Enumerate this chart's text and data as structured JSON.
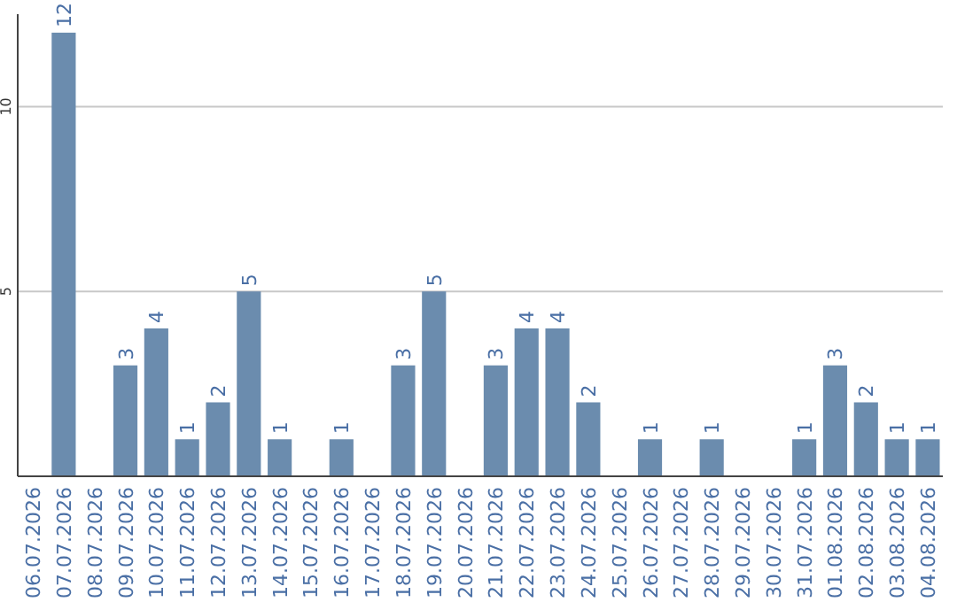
{
  "chart_data": {
    "type": "bar",
    "categories": [
      "06.07.2026",
      "07.07.2026",
      "08.07.2026",
      "09.07.2026",
      "10.07.2026",
      "11.07.2026",
      "12.07.2026",
      "13.07.2026",
      "14.07.2026",
      "15.07.2026",
      "16.07.2026",
      "17.07.2026",
      "18.07.2026",
      "19.07.2026",
      "20.07.2026",
      "21.07.2026",
      "22.07.2026",
      "23.07.2026",
      "24.07.2026",
      "25.07.2026",
      "26.07.2026",
      "27.07.2026",
      "28.07.2026",
      "29.07.2026",
      "30.07.2026",
      "31.07.2026",
      "01.08.2026",
      "02.08.2026",
      "03.08.2026",
      "04.08.2026"
    ],
    "values": [
      0,
      12,
      0,
      3,
      4,
      1,
      2,
      5,
      1,
      0,
      1,
      0,
      3,
      5,
      0,
      3,
      4,
      4,
      2,
      0,
      1,
      0,
      1,
      0,
      0,
      1,
      3,
      2,
      1,
      1
    ],
    "value_labels": [
      null,
      "12",
      null,
      "3",
      "4",
      "1",
      "2",
      "5",
      "1",
      null,
      "1",
      null,
      "3",
      "5",
      null,
      "3",
      "4",
      "4",
      "2",
      null,
      "1",
      null,
      "1",
      null,
      null,
      "1",
      "3",
      "2",
      "1",
      "1"
    ],
    "color": "#6b8cae",
    "ylim": [
      0,
      12.5
    ],
    "yticks": [
      5,
      10
    ],
    "grid": "y"
  }
}
